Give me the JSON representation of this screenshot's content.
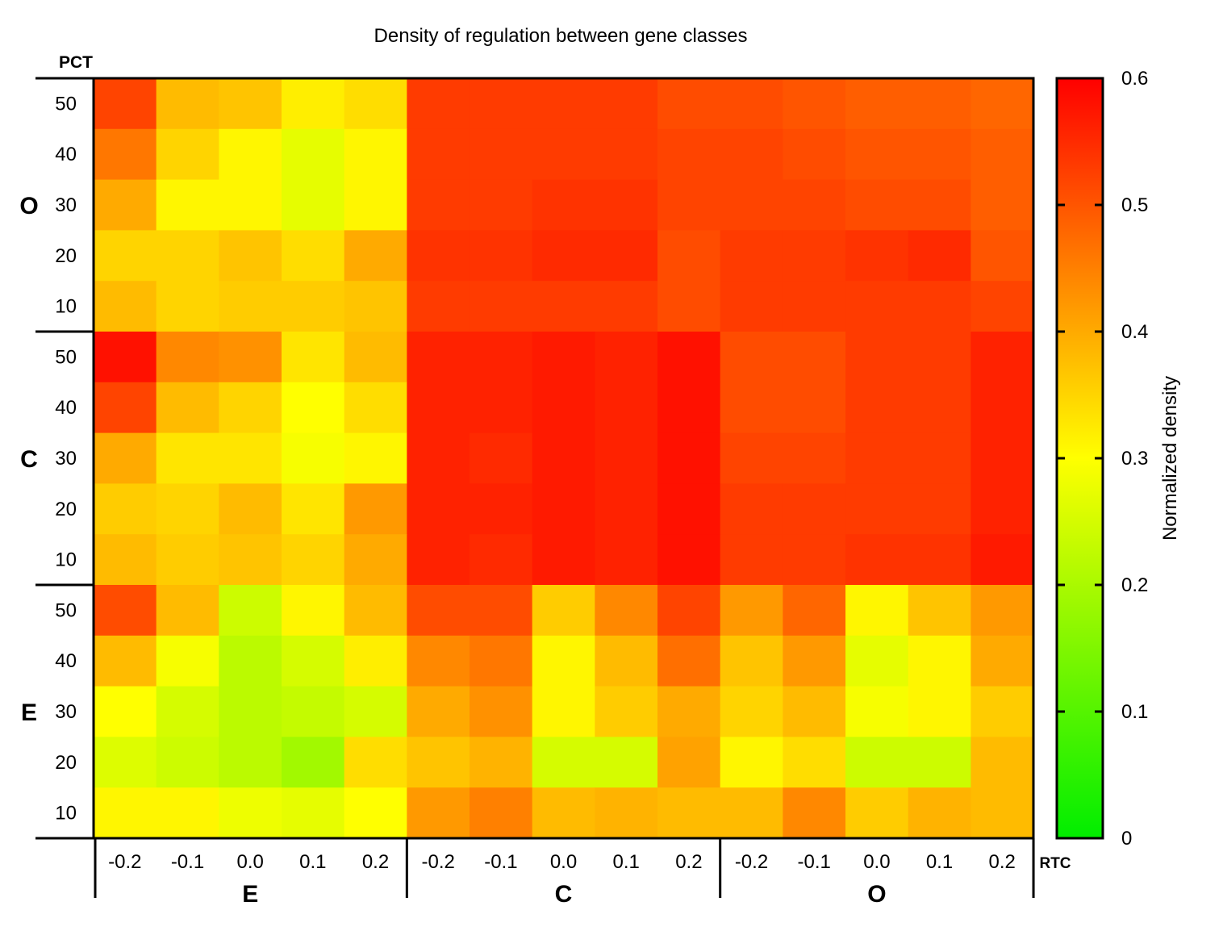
{
  "chart_data": {
    "type": "heatmap",
    "title": "Density of regulation between gene classes",
    "row_axis_label": "PCT",
    "col_axis_label": "RTC",
    "row_groups": [
      "O",
      "C",
      "E"
    ],
    "row_ticks": [
      "50",
      "40",
      "30",
      "20",
      "10"
    ],
    "col_groups": [
      "E",
      "C",
      "O"
    ],
    "col_ticks": [
      "-0.2",
      "-0.1",
      "0.0",
      "0.1",
      "0.2",
      "-0.2",
      "-0.1",
      "0.0",
      "0.1",
      "0.2",
      "-0.2",
      "-0.1",
      "0.0",
      "0.1",
      "0.2"
    ],
    "colorbar": {
      "label": "Normalized density",
      "ticks": [
        "0",
        "0.1",
        "0.2",
        "0.3",
        "0.4",
        "0.5",
        "0.6"
      ],
      "range": [
        0,
        0.6
      ],
      "color_low": "#00ee00",
      "color_mid": "#ffff00",
      "color_high": "#ff0000"
    },
    "values": [
      [
        0.52,
        0.38,
        0.37,
        0.32,
        0.34,
        0.53,
        0.53,
        0.53,
        0.53,
        0.51,
        0.51,
        0.5,
        0.49,
        0.49,
        0.48
      ],
      [
        0.46,
        0.35,
        0.31,
        0.27,
        0.31,
        0.53,
        0.53,
        0.53,
        0.53,
        0.52,
        0.52,
        0.51,
        0.5,
        0.5,
        0.49
      ],
      [
        0.4,
        0.31,
        0.31,
        0.27,
        0.31,
        0.53,
        0.53,
        0.54,
        0.54,
        0.52,
        0.52,
        0.52,
        0.51,
        0.51,
        0.49
      ],
      [
        0.35,
        0.35,
        0.37,
        0.34,
        0.4,
        0.54,
        0.54,
        0.55,
        0.55,
        0.51,
        0.53,
        0.53,
        0.54,
        0.55,
        0.5
      ],
      [
        0.38,
        0.35,
        0.36,
        0.36,
        0.37,
        0.53,
        0.53,
        0.53,
        0.53,
        0.51,
        0.53,
        0.53,
        0.53,
        0.53,
        0.52
      ],
      [
        0.58,
        0.44,
        0.43,
        0.33,
        0.38,
        0.56,
        0.56,
        0.57,
        0.56,
        0.58,
        0.51,
        0.51,
        0.53,
        0.53,
        0.56
      ],
      [
        0.52,
        0.38,
        0.35,
        0.3,
        0.34,
        0.56,
        0.56,
        0.57,
        0.56,
        0.58,
        0.51,
        0.51,
        0.53,
        0.53,
        0.56
      ],
      [
        0.4,
        0.33,
        0.33,
        0.29,
        0.31,
        0.56,
        0.55,
        0.57,
        0.56,
        0.58,
        0.52,
        0.52,
        0.53,
        0.53,
        0.56
      ],
      [
        0.36,
        0.35,
        0.38,
        0.33,
        0.42,
        0.56,
        0.56,
        0.57,
        0.56,
        0.58,
        0.53,
        0.53,
        0.53,
        0.53,
        0.56
      ],
      [
        0.38,
        0.36,
        0.37,
        0.35,
        0.4,
        0.56,
        0.55,
        0.57,
        0.56,
        0.58,
        0.53,
        0.53,
        0.54,
        0.54,
        0.57
      ],
      [
        0.51,
        0.38,
        0.24,
        0.31,
        0.38,
        0.51,
        0.51,
        0.36,
        0.44,
        0.52,
        0.42,
        0.48,
        0.31,
        0.37,
        0.42
      ],
      [
        0.38,
        0.29,
        0.22,
        0.25,
        0.32,
        0.44,
        0.46,
        0.31,
        0.38,
        0.47,
        0.37,
        0.42,
        0.27,
        0.31,
        0.4
      ],
      [
        0.3,
        0.25,
        0.22,
        0.23,
        0.25,
        0.4,
        0.43,
        0.31,
        0.36,
        0.4,
        0.35,
        0.38,
        0.29,
        0.31,
        0.36
      ],
      [
        0.26,
        0.24,
        0.22,
        0.19,
        0.34,
        0.37,
        0.39,
        0.25,
        0.25,
        0.41,
        0.31,
        0.34,
        0.24,
        0.24,
        0.38
      ],
      [
        0.31,
        0.31,
        0.28,
        0.27,
        0.3,
        0.42,
        0.45,
        0.38,
        0.39,
        0.38,
        0.38,
        0.44,
        0.36,
        0.39,
        0.38
      ]
    ]
  }
}
